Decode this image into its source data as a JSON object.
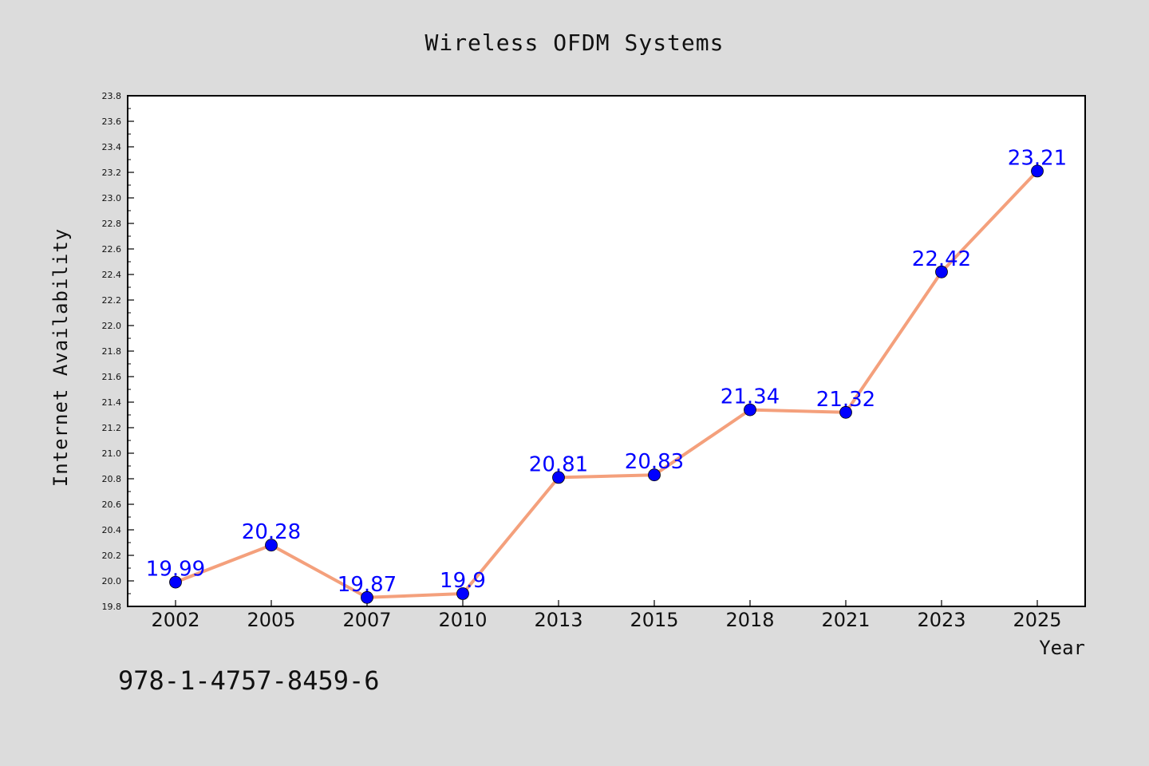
{
  "chart_data": {
    "type": "line",
    "title": "Wireless OFDM Systems",
    "xlabel": "Year",
    "ylabel": "Internet Availability",
    "categories": [
      "2002",
      "2005",
      "2007",
      "2010",
      "2013",
      "2015",
      "2018",
      "2021",
      "2023",
      "2025"
    ],
    "series": [
      {
        "values": [
          19.99,
          20.28,
          19.87,
          19.9,
          20.81,
          20.83,
          21.34,
          21.32,
          22.42,
          23.21
        ],
        "data_labels": [
          "19.99",
          "20.28",
          "19.87",
          "19.9",
          "20.81",
          "20.83",
          "21.34",
          "21.32",
          "22.42",
          "23.21"
        ],
        "line_color": "#f4a07c",
        "marker_color": "#0000ff"
      }
    ],
    "ylim": [
      19.8,
      23.8
    ],
    "yticks": [
      "19.8",
      "20.0",
      "20.2",
      "20.4",
      "20.6",
      "20.8",
      "21.0",
      "21.2",
      "21.4",
      "21.6",
      "21.8",
      "22.0",
      "22.2",
      "22.4",
      "22.6",
      "22.8",
      "23.0",
      "23.2",
      "23.4",
      "23.6",
      "23.8"
    ],
    "grid": false,
    "legend": "none"
  },
  "footer": {
    "isbn": "978-1-4757-8459-6"
  },
  "colors": {
    "background": "#dcdcdc",
    "plot_background": "#ffffff",
    "label_color": "#0000ff"
  }
}
